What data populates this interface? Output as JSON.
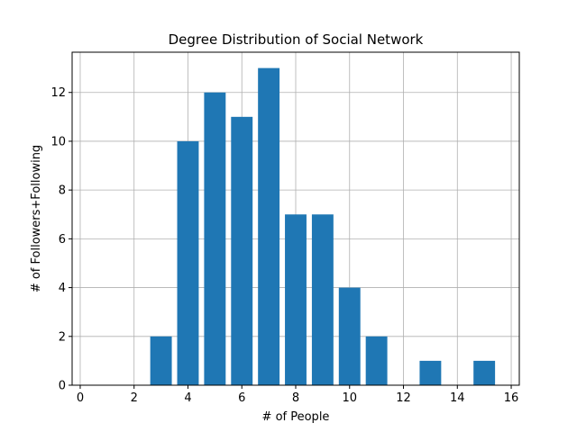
{
  "chart_data": {
    "type": "bar",
    "title": "Degree Distribution of Social Network",
    "xlabel": "# of People",
    "ylabel": "# of Followers+Following",
    "xlim": [
      -0.3,
      16.3
    ],
    "ylim": [
      0,
      13.65
    ],
    "xticks": [
      0,
      2,
      4,
      6,
      8,
      10,
      12,
      14,
      16
    ],
    "yticks": [
      0,
      2,
      4,
      6,
      8,
      10,
      12
    ],
    "grid": true,
    "bar_color": "#1f77b4",
    "bar_width": 0.8,
    "x": [
      3,
      4,
      5,
      6,
      7,
      8,
      9,
      10,
      11,
      13,
      15
    ],
    "values": [
      2,
      10,
      12,
      11,
      13,
      7,
      7,
      4,
      2,
      1,
      1
    ]
  }
}
